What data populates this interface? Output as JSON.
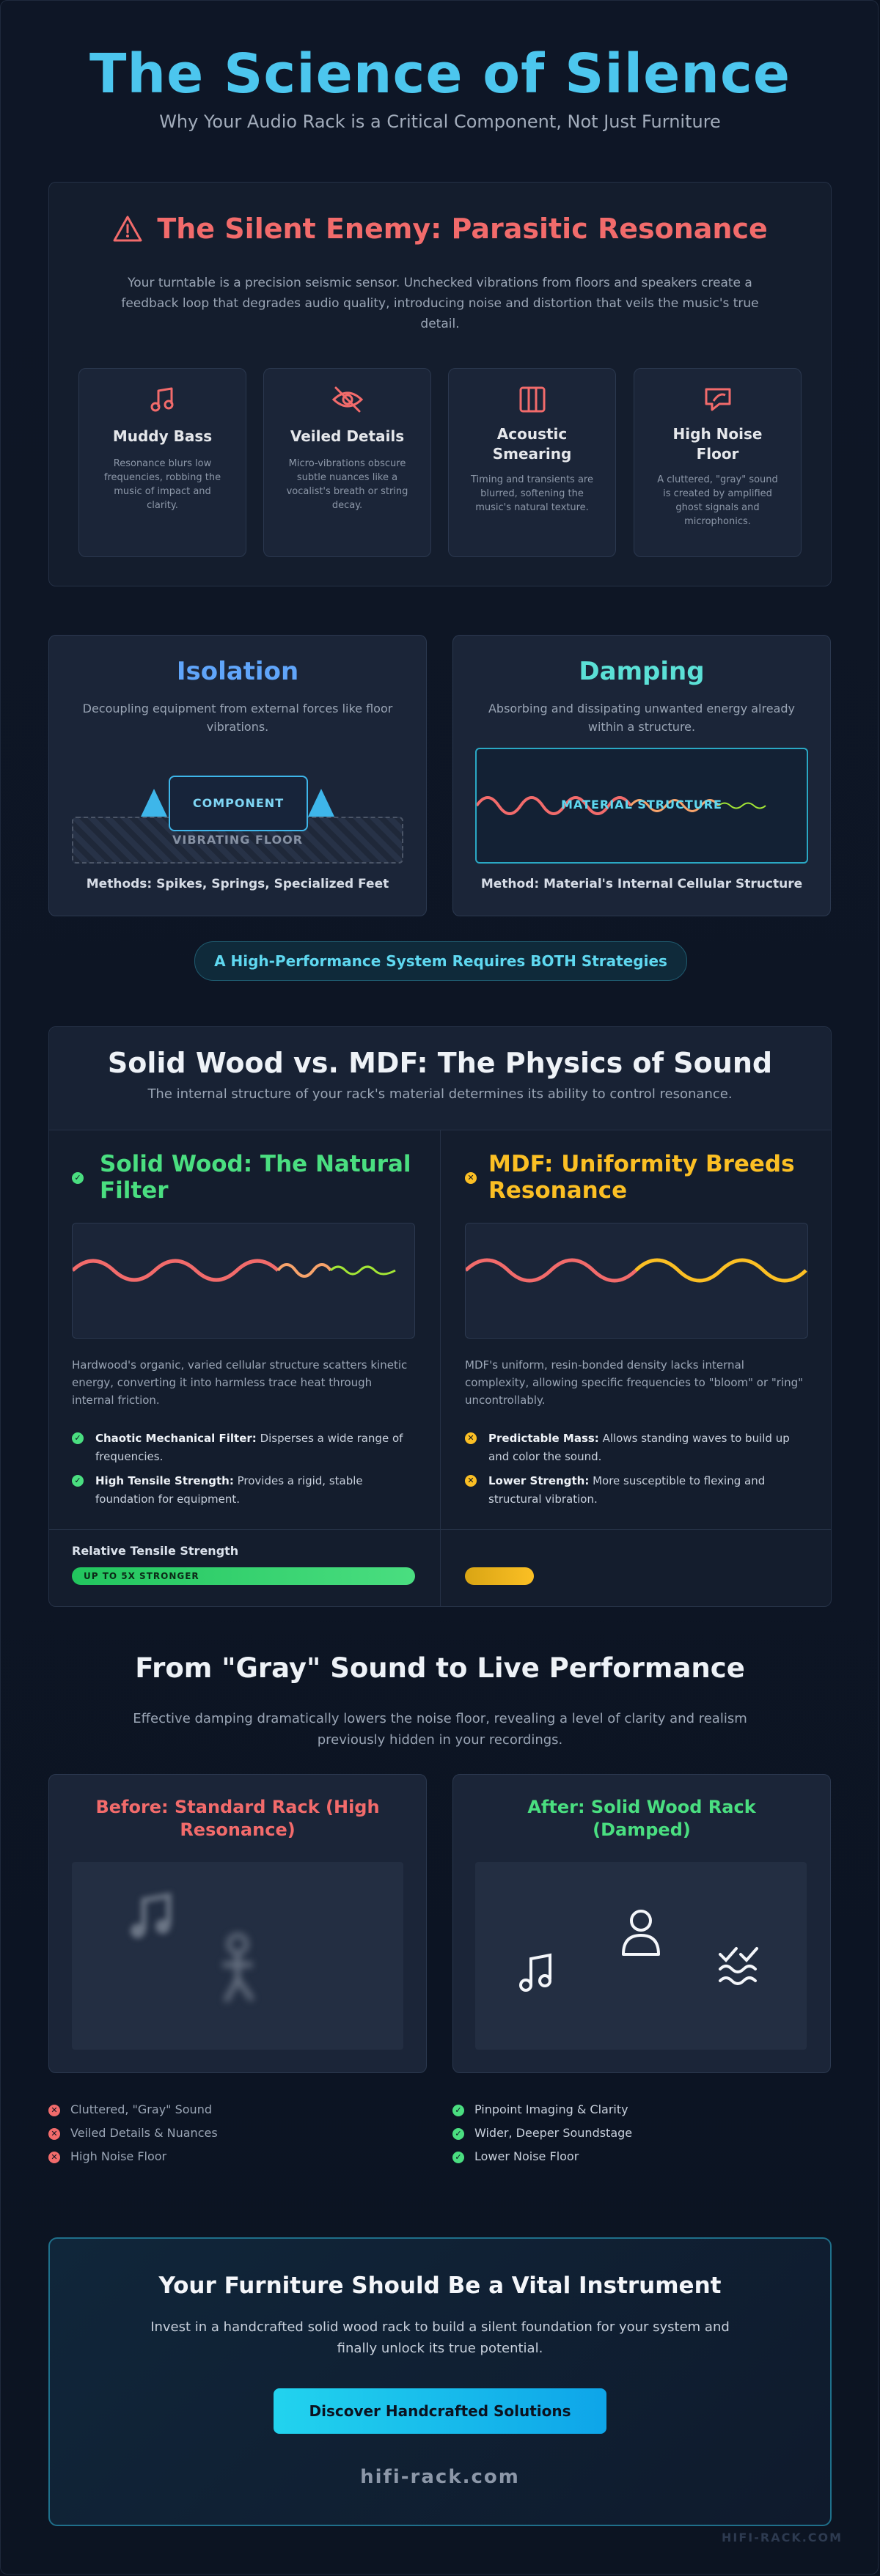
{
  "header": {
    "title": "The Science of Silence",
    "subtitle": "Why Your Audio Rack is a Critical Component, Not Just Furniture"
  },
  "enemy": {
    "title": "The Silent Enemy: Parasitic Resonance",
    "intro": "Your turntable is a precision seismic sensor. Unchecked vibrations from floors and speakers create a feedback loop that degrades audio quality, introducing noise and distortion that veils the music's true detail.",
    "cards": [
      {
        "icon": "music-note-icon",
        "title": "Muddy Bass",
        "text": "Resonance blurs low frequencies, robbing the music of impact and clarity."
      },
      {
        "icon": "eye-off-icon",
        "title": "Veiled Details",
        "text": "Micro-vibrations obscure subtle nuances like a vocalist's breath or string decay."
      },
      {
        "icon": "columns-icon",
        "title": "Acoustic Smearing",
        "text": "Timing and transients are blurred, softening the music's natural texture."
      },
      {
        "icon": "noise-screen-icon",
        "title": "High Noise Floor",
        "text": "A cluttered, \"gray\" sound is created by amplified ghost signals and microphonics."
      }
    ]
  },
  "strategies": {
    "isolation": {
      "title": "Isolation",
      "text": "Decoupling equipment from external forces like floor vibrations.",
      "component": "COMPONENT",
      "floor": "VIBRATING FLOOR",
      "methods": "Methods: Spikes, Springs, Specialized Feet"
    },
    "damping": {
      "title": "Damping",
      "text": "Absorbing and dissipating unwanted energy already within a structure.",
      "label": "MATERIAL STRUCTURE",
      "methods": "Method: Material's Internal Cellular Structure"
    },
    "both": "A High-Performance System Requires BOTH Strategies"
  },
  "compare": {
    "title": "Solid Wood vs. MDF: The Physics of Sound",
    "subtitle": "The internal structure of your rack's material determines its ability to control resonance.",
    "wood": {
      "title": "Solid Wood: The Natural Filter",
      "text": "Hardwood's organic, varied cellular structure scatters kinetic energy, converting it into harmless trace heat through internal friction.",
      "points": [
        {
          "bold": "Chaotic Mechanical Filter:",
          "rest": " Disperses a wide range of frequencies."
        },
        {
          "bold": "High Tensile Strength:",
          "rest": " Provides a rigid, stable foundation for equipment."
        }
      ]
    },
    "mdf": {
      "title": "MDF: Uniformity Breeds Resonance",
      "text": "MDF's uniform, resin-bonded density lacks internal complexity, allowing specific frequencies to \"bloom\" or \"ring\" uncontrollably.",
      "points": [
        {
          "bold": "Predictable Mass:",
          "rest": " Allows standing waves to build up and color the sound."
        },
        {
          "bold": "Lower Strength:",
          "rest": " More susceptible to flexing and structural vibration."
        }
      ]
    },
    "strength": {
      "label": "Relative Tensile Strength",
      "wood_bar": "UP TO 5X STRONGER",
      "wood_fraction": 1.0,
      "mdf_fraction": 0.2
    }
  },
  "perf": {
    "title": "From \"Gray\" Sound to Live Performance",
    "subtitle": "Effective damping dramatically lowers the noise floor, revealing a level of clarity and realism previously hidden in your recordings.",
    "before": {
      "title": "Before: Standard Rack (High Resonance)",
      "items": [
        "Cluttered, \"Gray\" Sound",
        "Veiled Details & Nuances",
        "High Noise Floor"
      ]
    },
    "after": {
      "title": "After: Solid Wood Rack (Damped)",
      "items": [
        "Pinpoint Imaging & Clarity",
        "Wider, Deeper Soundstage",
        "Lower Noise Floor"
      ]
    }
  },
  "cta": {
    "title": "Your Furniture Should Be a Vital Instrument",
    "text": "Invest in a handcrafted solid wood rack to build a silent foundation for your system and finally unlock its true potential.",
    "button": "Discover Handcrafted Solutions",
    "site": "hifi-rack.com"
  },
  "footer": {
    "watermark": "HIFI-RACK.COM"
  },
  "colors": {
    "accent": "#4cc6ee",
    "red": "#f26b6b",
    "green": "#4ade80",
    "yellow": "#fbbf24",
    "teal": "#5be0d6"
  }
}
